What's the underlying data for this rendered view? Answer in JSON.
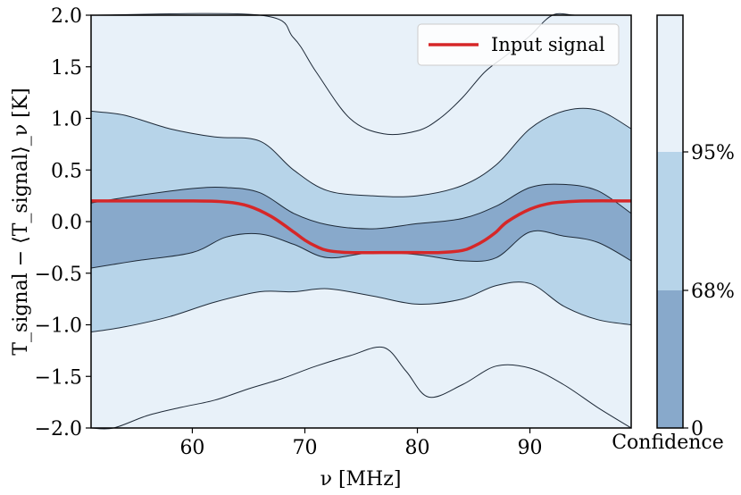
{
  "chart_data": {
    "type": "area",
    "title": "",
    "xlabel": "ν [MHz]",
    "ylabel": "T_signal − ⟨T_signal⟩_ν [K]",
    "xlim": [
      51,
      99
    ],
    "ylim": [
      -2.0,
      2.0
    ],
    "xticks": [
      60,
      70,
      80,
      90
    ],
    "yticks": [
      -2.0,
      -1.5,
      -1.0,
      -0.5,
      0.0,
      0.5,
      1.0,
      1.5,
      2.0
    ],
    "xtick_labels": [
      "60",
      "70",
      "80",
      "90"
    ],
    "ytick_labels": [
      "−2.0",
      "−1.5",
      "−1.0",
      "−0.5",
      "0.0",
      "0.5",
      "1.0",
      "1.5",
      "2.0"
    ],
    "legend": {
      "label": "Input signal",
      "placement": "top-right"
    },
    "colorbar": {
      "label": "Confidence",
      "ticks": [
        "0",
        "68%",
        "95%"
      ],
      "levels": [
        {
          "name": "68%",
          "color": "#88a9cb"
        },
        {
          "name": "95%",
          "color": "#b7d4e9"
        },
        {
          "name": "outer",
          "color": "#e8f1f9"
        }
      ]
    },
    "colors": {
      "signal": "#d62728",
      "band68": "#88a9cb",
      "band95": "#b7d4e9",
      "outer": "#e8f1f9",
      "contour": "#1e2a38"
    },
    "signal": {
      "x": [
        51,
        60,
        63,
        65,
        67,
        69,
        70,
        71,
        72,
        74,
        78,
        80,
        82,
        84,
        85,
        86,
        87,
        88,
        90,
        92,
        95,
        99
      ],
      "y": [
        0.2,
        0.2,
        0.19,
        0.15,
        0.05,
        -0.1,
        -0.18,
        -0.24,
        -0.28,
        -0.3,
        -0.3,
        -0.3,
        -0.3,
        -0.28,
        -0.24,
        -0.18,
        -0.1,
        0.0,
        0.12,
        0.18,
        0.2,
        0.2
      ]
    },
    "band68": {
      "x": [
        51,
        55,
        60,
        63,
        66,
        69,
        72,
        76,
        80,
        84,
        87,
        90,
        93,
        96,
        99
      ],
      "upper": [
        0.18,
        0.25,
        0.32,
        0.33,
        0.28,
        0.08,
        -0.03,
        -0.07,
        -0.02,
        0.03,
        0.15,
        0.33,
        0.36,
        0.3,
        0.08
      ],
      "lower": [
        -0.45,
        -0.38,
        -0.3,
        -0.15,
        -0.12,
        -0.22,
        -0.35,
        -0.3,
        -0.32,
        -0.38,
        -0.35,
        -0.1,
        -0.14,
        -0.2,
        -0.38
      ]
    },
    "band95": {
      "x": [
        51,
        54,
        58,
        62,
        66,
        69,
        72,
        76,
        80,
        84,
        87,
        90,
        93,
        96,
        99
      ],
      "upper": [
        1.07,
        1.03,
        0.9,
        0.82,
        0.78,
        0.5,
        0.3,
        0.25,
        0.25,
        0.35,
        0.55,
        0.9,
        1.07,
        1.08,
        0.9
      ],
      "lower": [
        -1.07,
        -1.02,
        -0.92,
        -0.78,
        -0.68,
        -0.68,
        -0.65,
        -0.72,
        -0.8,
        -0.75,
        -0.62,
        -0.6,
        -0.82,
        -0.95,
        -1.0
      ]
    },
    "outer_top": {
      "x": [
        51,
        66,
        69,
        71,
        74,
        77,
        80,
        82,
        84,
        86,
        88,
        90,
        92,
        94,
        96,
        98,
        99
      ],
      "y": [
        2.0,
        2.0,
        1.78,
        1.45,
        1.0,
        0.85,
        0.88,
        1.0,
        1.2,
        1.45,
        1.62,
        1.8,
        2.0,
        2.0,
        2.0,
        2.0,
        2.0
      ]
    },
    "outer_bottom": {
      "x": [
        51,
        53,
        56,
        59,
        62,
        65,
        68,
        71,
        74,
        77,
        79,
        81,
        84,
        87,
        90,
        93,
        96,
        99
      ],
      "y": [
        -2.0,
        -2.0,
        -1.88,
        -1.8,
        -1.73,
        -1.62,
        -1.52,
        -1.4,
        -1.3,
        -1.22,
        -1.45,
        -1.7,
        -1.58,
        -1.4,
        -1.42,
        -1.58,
        -1.8,
        -2.0
      ]
    }
  }
}
